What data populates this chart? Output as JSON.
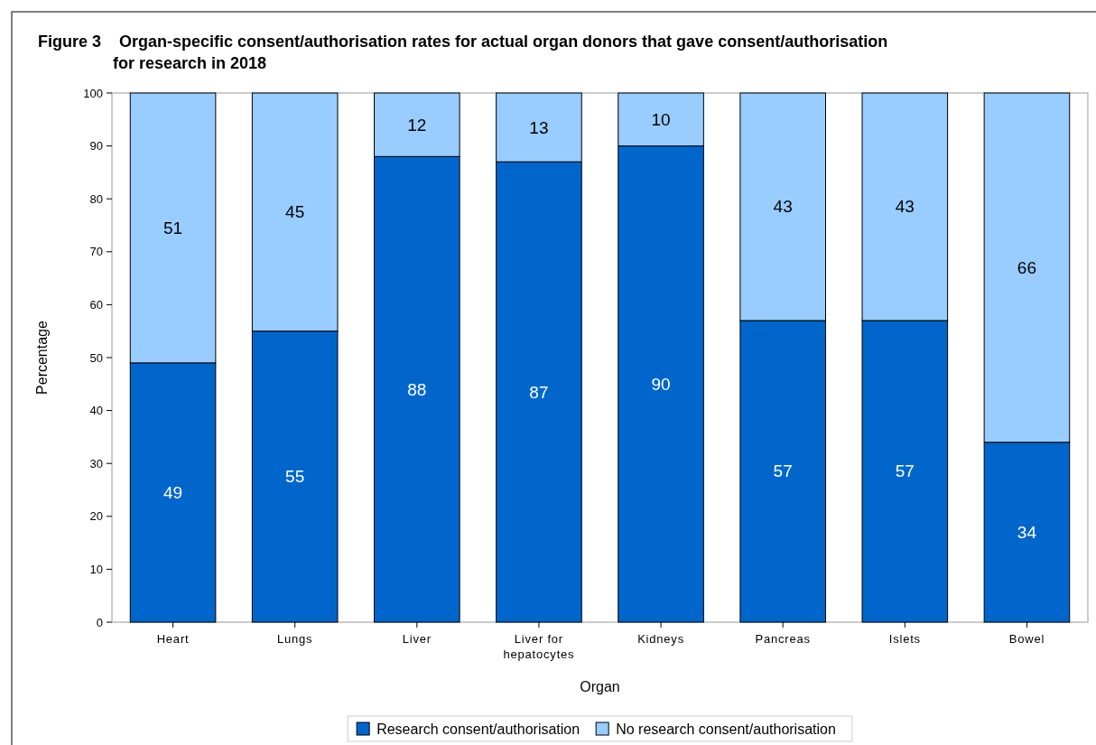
{
  "chart_data": {
    "type": "bar",
    "title": "Figure 3    Organ-specific consent/authorisation rates for actual organ donors that gave consent/authorisation for research in 2018",
    "xlabel": "Organ",
    "ylabel": "Percentage",
    "categories": [
      "Heart",
      "Lungs",
      "Liver",
      "Liver for hepatocytes",
      "Kidneys",
      "Pancreas",
      "Islets",
      "Bowel"
    ],
    "stacked": true,
    "series": [
      {
        "name": "Research consent/authorisation",
        "color": "#0066cc",
        "values": [
          49,
          55,
          88,
          87,
          90,
          57,
          57,
          34
        ]
      },
      {
        "name": "No research consent/authorisation",
        "color": "#99ccff",
        "values": [
          51,
          45,
          12,
          13,
          10,
          43,
          43,
          66
        ]
      }
    ],
    "ylim": [
      0,
      100
    ],
    "yticks": [
      0,
      10,
      20,
      30,
      40,
      50,
      60,
      70,
      80,
      90,
      100
    ],
    "grid": false,
    "legend": "bottom",
    "data_labels": true
  }
}
